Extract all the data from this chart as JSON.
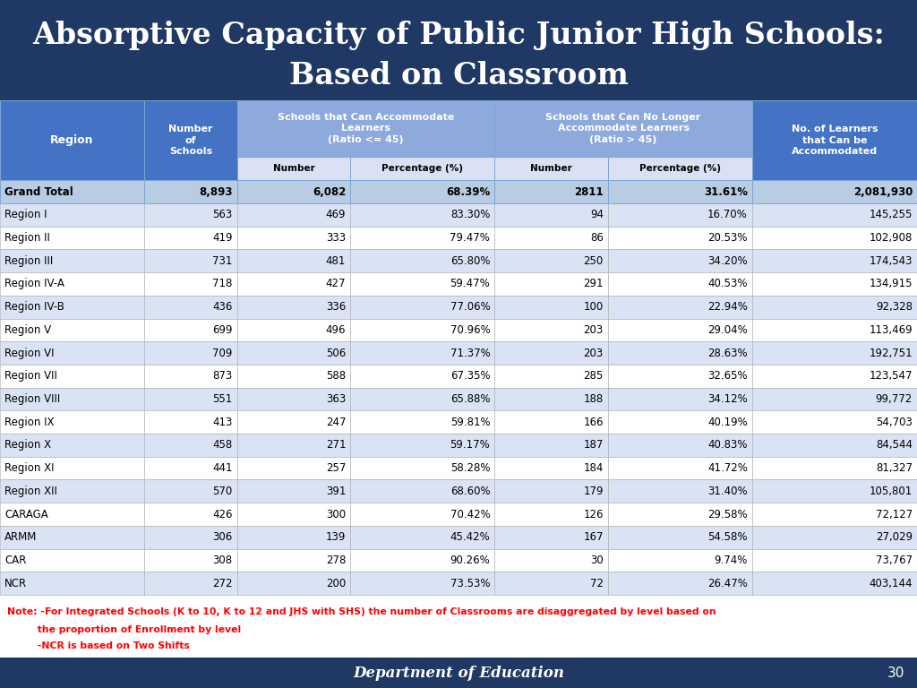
{
  "title_line1": "Absorptive Capacity of Public Junior High Schools:",
  "title_line2": "Based on Classroom",
  "title_bg": "#1F3864",
  "title_text_color": "#FFFFFF",
  "header_bg_dark": "#4472C4",
  "header_bg_light": "#8EA9DB",
  "header_text_color": "#FFFFFF",
  "subheader_bg": "#D9E1F2",
  "subheader_text_color": "#000000",
  "row_bg_even": "#FFFFFF",
  "row_bg_odd": "#DAE3F3",
  "row_text_color": "#000000",
  "grand_total_bg": "#B8CCE4",
  "grand_total_text_color": "#000000",
  "note_text_color": "#FF0000",
  "footer_bg": "#1F3864",
  "footer_text_color": "#FFFFFF",
  "regions": [
    "Region I",
    "Region II",
    "Region III",
    "Region IV-A",
    "Region IV-B",
    "Region V",
    "Region VI",
    "Region VII",
    "Region VIII",
    "Region IX",
    "Region X",
    "Region XI",
    "Region XII",
    "CARAGA",
    "ARMM",
    "CAR",
    "NCR"
  ],
  "num_schools": [
    563,
    419,
    731,
    718,
    436,
    699,
    709,
    873,
    551,
    413,
    458,
    441,
    570,
    426,
    306,
    308,
    272
  ],
  "accom_num": [
    469,
    333,
    481,
    427,
    336,
    496,
    506,
    588,
    363,
    247,
    271,
    257,
    391,
    300,
    139,
    278,
    200
  ],
  "accom_pct": [
    "83.30%",
    "79.47%",
    "65.80%",
    "59.47%",
    "77.06%",
    "70.96%",
    "71.37%",
    "67.35%",
    "65.88%",
    "59.81%",
    "59.17%",
    "58.28%",
    "68.60%",
    "70.42%",
    "45.42%",
    "90.26%",
    "73.53%"
  ],
  "no_accom_num": [
    94,
    86,
    250,
    291,
    100,
    203,
    203,
    285,
    188,
    166,
    187,
    184,
    179,
    126,
    167,
    30,
    72
  ],
  "no_accom_pct": [
    "16.70%",
    "20.53%",
    "34.20%",
    "40.53%",
    "22.94%",
    "29.04%",
    "28.63%",
    "32.65%",
    "34.12%",
    "40.19%",
    "40.83%",
    "41.72%",
    "31.40%",
    "29.58%",
    "54.58%",
    "9.74%",
    "26.47%"
  ],
  "learners_accom": [
    "145,255",
    "102,908",
    "174,543",
    "134,915",
    "92,328",
    "113,469",
    "192,751",
    "123,547",
    "99,772",
    "54,703",
    "84,544",
    "81,327",
    "105,801",
    "72,127",
    "27,029",
    "73,767",
    "403,144"
  ],
  "grand_total": [
    "Grand Total",
    "8,893",
    "6,082",
    "68.39%",
    "2811",
    "31.61%",
    "2,081,930"
  ],
  "note_line1": "Note: -For Integrated Schools (K to 10, K to 12 and JHS with SHS) the number of Classrooms are disaggregated by level based on",
  "note_line2": "         the proportion of Enrollment by level",
  "note_line3": "         -NCR is based on Two Shifts",
  "footer_text": "Department of Education",
  "page_num": "30"
}
